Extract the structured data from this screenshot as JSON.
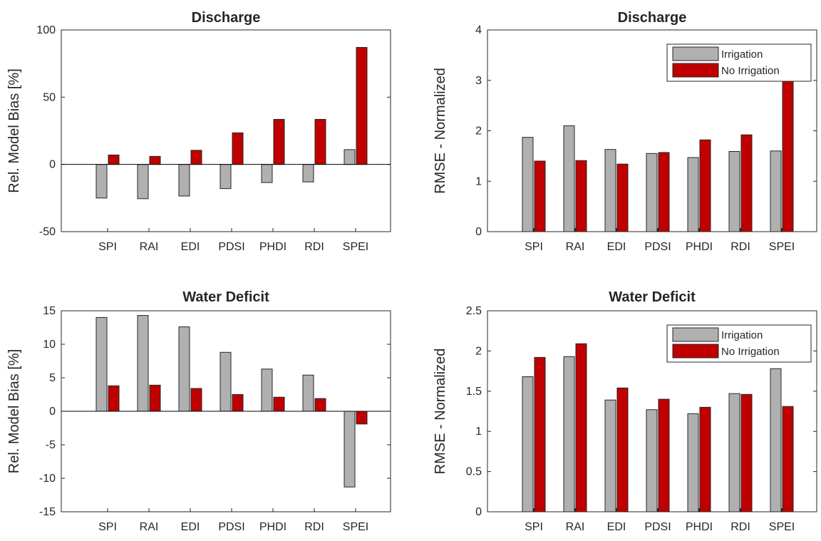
{
  "colors": {
    "irrigation": "#b0b0b0",
    "no_irrigation": "#c00000",
    "axis": "#262626"
  },
  "chart_data": [
    {
      "type": "bar",
      "title": "Discharge",
      "ylabel": "Rel. Model Bias [%]",
      "ylim": [
        -50,
        100
      ],
      "yticks": [
        -50,
        0,
        50,
        100
      ],
      "ytick_labels": [
        "-50",
        "0",
        "50",
        "100"
      ],
      "categories": [
        "SPI",
        "RAI",
        "EDI",
        "PDSI",
        "PHDI",
        "RDI",
        "SPEI"
      ],
      "series": [
        {
          "key": "irrigation",
          "values": [
            -25,
            -25.5,
            -23.5,
            -18,
            -13.5,
            -13,
            11
          ]
        },
        {
          "key": "no_irrigation",
          "values": [
            7,
            6,
            10.5,
            23.5,
            33.5,
            33.5,
            87
          ]
        }
      ],
      "legend": null
    },
    {
      "type": "bar",
      "title": "Discharge",
      "ylabel": "RMSE - Normalized",
      "ylim": [
        0,
        4
      ],
      "yticks": [
        0,
        1,
        2,
        3,
        4
      ],
      "ytick_labels": [
        "0",
        "1",
        "2",
        "3",
        "4"
      ],
      "categories": [
        "SPI",
        "RAI",
        "EDI",
        "PDSI",
        "PHDI",
        "RDI",
        "SPEI"
      ],
      "series": [
        {
          "key": "irrigation",
          "name": "Irrigation",
          "values": [
            1.87,
            2.1,
            1.63,
            1.55,
            1.47,
            1.59,
            1.6
          ]
        },
        {
          "key": "no_irrigation",
          "name": "No Irrigation",
          "values": [
            1.4,
            1.41,
            1.34,
            1.57,
            1.82,
            1.92,
            3.0
          ]
        }
      ],
      "legend": "top-right"
    },
    {
      "type": "bar",
      "title": "Water Deficit",
      "ylabel": "Rel. Model Bias [%]",
      "ylim": [
        -15,
        15
      ],
      "yticks": [
        -15,
        -10,
        -5,
        0,
        5,
        10,
        15
      ],
      "ytick_labels": [
        "-15",
        "-10",
        "-5",
        "0",
        "5",
        "10",
        "15"
      ],
      "categories": [
        "SPI",
        "RAI",
        "EDI",
        "PDSI",
        "PHDI",
        "RDI",
        "SPEI"
      ],
      "series": [
        {
          "key": "irrigation",
          "values": [
            14,
            14.3,
            12.6,
            8.8,
            6.3,
            5.4,
            -11.3
          ]
        },
        {
          "key": "no_irrigation",
          "values": [
            3.8,
            3.9,
            3.4,
            2.5,
            2.1,
            1.9,
            -1.9
          ]
        }
      ],
      "legend": null
    },
    {
      "type": "bar",
      "title": "Water Deficit",
      "ylabel": "RMSE - Normalized",
      "ylim": [
        0,
        2.5
      ],
      "yticks": [
        0,
        0.5,
        1,
        1.5,
        2,
        2.5
      ],
      "ytick_labels": [
        "0",
        "0.5",
        "1",
        "1.5",
        "2",
        "2.5"
      ],
      "categories": [
        "SPI",
        "RAI",
        "EDI",
        "PDSI",
        "PHDI",
        "RDI",
        "SPEI"
      ],
      "series": [
        {
          "key": "irrigation",
          "name": "Irrigation",
          "values": [
            1.68,
            1.93,
            1.39,
            1.27,
            1.22,
            1.47,
            1.78
          ]
        },
        {
          "key": "no_irrigation",
          "name": "No Irrigation",
          "values": [
            1.92,
            2.09,
            1.54,
            1.4,
            1.3,
            1.46,
            1.31
          ]
        }
      ],
      "legend": "top-right"
    }
  ]
}
